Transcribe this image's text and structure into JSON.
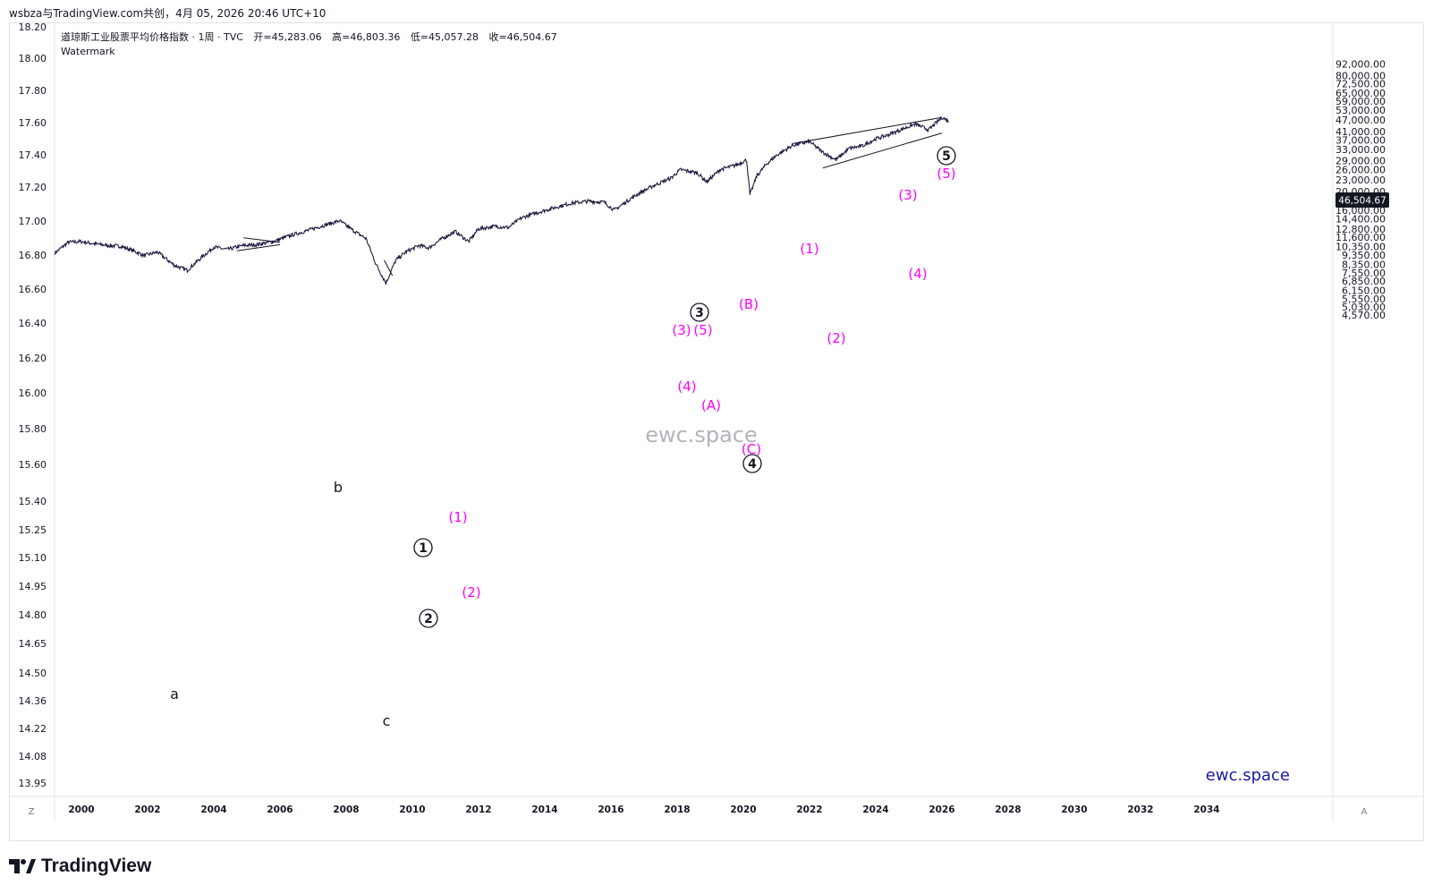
{
  "header": {
    "attribution": "wsbza与TradingView.com共创，4月 05, 2026 20:46 UTC+10"
  },
  "legend": {
    "symbol": "道琼斯工业股票平均价格指数 · 1周 · TVC",
    "open_label": "开=",
    "open_value": "45,283.06",
    "high_label": "高=",
    "high_value": "46,803.36",
    "low_label": "低=",
    "low_value": "45,057.28",
    "close_label": "收=",
    "close_value": "46,504.67",
    "watermark_label": "Watermark"
  },
  "watermark": {
    "center": "ewc.space",
    "bottom_right": "ewc.space"
  },
  "price_badge": "46,504.67",
  "corner": {
    "left": "Z",
    "right": "A"
  },
  "branding": {
    "name": "TradingView"
  },
  "colors": {
    "price_line": "#1a1a3e",
    "wave_label": "#ff00ff",
    "badge_bg": "#131722",
    "brand_blue": "#1a1aa0"
  },
  "chart_data": {
    "type": "line",
    "title": "道琼斯工业股票平均价格指数 · 1周 · TVC",
    "x_ticks": [
      "2000",
      "2002",
      "2004",
      "2006",
      "2008",
      "2010",
      "2012",
      "2014",
      "2016",
      "2018",
      "2020",
      "2022",
      "2024",
      "2026",
      "2028",
      "2030",
      "2032",
      "2034"
    ],
    "left_axis_ticks": [
      "18.20",
      "18.00",
      "17.80",
      "17.60",
      "17.40",
      "17.20",
      "17.00",
      "16.80",
      "16.60",
      "16.40",
      "16.20",
      "16.00",
      "15.80",
      "15.60",
      "15.40",
      "15.25",
      "15.10",
      "14.95",
      "14.80",
      "14.65",
      "14.50",
      "14.36",
      "14.22",
      "14.08",
      "13.95"
    ],
    "right_axis_ticks": [
      "92,000.00",
      "80,000.00",
      "72,500.00",
      "65,000.00",
      "59,000.00",
      "53,000.00",
      "47,000.00",
      "41,000.00",
      "37,000.00",
      "33,000.00",
      "29,000.00",
      "26,000.00",
      "23,000.00",
      "20,000.00",
      "18,000.00",
      "16,000.00",
      "14,400.00",
      "12,800.00",
      "11,600.00",
      "10,350.00",
      "9,350.00",
      "8,350.00",
      "7,550.00",
      "6,850.00",
      "6,150.00",
      "5,550.00",
      "5,030.00",
      "4,570.00"
    ],
    "y_scale": "log",
    "series": [
      {
        "x": [
          1999.2,
          1999.6,
          2000.0,
          2000.4,
          2000.8,
          2001.2,
          2001.6,
          2001.9,
          2002.3,
          2002.8,
          2003.2,
          2003.6,
          2004.0,
          2004.4,
          2004.9,
          2005.3,
          2005.8,
          2006.3,
          2006.8,
          2007.3,
          2007.8,
          2008.2,
          2008.6,
          2008.9,
          2009.2,
          2009.5,
          2009.8,
          2010.2,
          2010.5,
          2010.9,
          2011.3,
          2011.7,
          2012.0,
          2012.5,
          2012.9,
          2013.3,
          2013.8,
          2014.3,
          2014.8,
          2015.3,
          2015.8,
          2016.1,
          2016.6,
          2016.9,
          2017.3,
          2017.8,
          2018.1,
          2018.6,
          2018.9,
          2019.3,
          2019.8,
          2020.1,
          2020.2,
          2020.4,
          2020.7,
          2021.0,
          2021.5,
          2022.0,
          2022.4,
          2022.8,
          2023.2,
          2023.6,
          2024.0,
          2024.4,
          2024.9,
          2025.2,
          2025.6,
          2026.0,
          2026.2
        ],
        "y": [
          9600,
          10900,
          11000,
          10700,
          10500,
          10400,
          9800,
          9300,
          9700,
          8300,
          7800,
          9000,
          10300,
          10000,
          10500,
          10600,
          11000,
          11800,
          12500,
          13300,
          14100,
          12600,
          11400,
          8400,
          6700,
          8800,
          9700,
          10500,
          10200,
          11400,
          12400,
          11000,
          12800,
          13200,
          13000,
          14600,
          15600,
          16500,
          17400,
          17800,
          17600,
          16000,
          18400,
          19800,
          21500,
          23400,
          26000,
          25000,
          22500,
          26000,
          27500,
          29200,
          19200,
          24000,
          27800,
          30800,
          34800,
          36300,
          32000,
          29200,
          33500,
          34500,
          37500,
          39500,
          42800,
          44800,
          41800,
          48500,
          46500
        ]
      }
    ]
  },
  "wave_labels": {
    "a": "a",
    "b": "b",
    "c": "c",
    "c1": "1",
    "c2": "2",
    "c3": "3",
    "c4": "4",
    "c5": "5",
    "p1_2011": "(1)",
    "p2_2011": "(2)",
    "p3_2018": "(3)",
    "p4_2018": "(4)",
    "p5_2018": "(5)",
    "pA": "(A)",
    "pB": "(B)",
    "pC": "(C)",
    "p1_2022": "(1)",
    "p2_2022": "(2)",
    "p3_2025": "(3)",
    "p4_2025": "(4)",
    "p5_2026": "(5)"
  }
}
